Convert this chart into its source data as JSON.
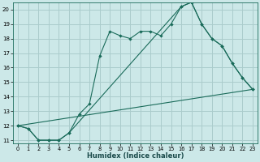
{
  "xlabel": "Humidex (Indice chaleur)",
  "bg_color": "#cce8e8",
  "grid_color": "#aacccc",
  "line_color": "#1a6b5a",
  "xlim": [
    -0.5,
    23.5
  ],
  "ylim": [
    10.8,
    20.5
  ],
  "xticks": [
    0,
    1,
    2,
    3,
    4,
    5,
    6,
    7,
    8,
    9,
    10,
    11,
    12,
    13,
    14,
    15,
    16,
    17,
    18,
    19,
    20,
    21,
    22,
    23
  ],
  "yticks": [
    11,
    12,
    13,
    14,
    15,
    16,
    17,
    18,
    19,
    20
  ],
  "line1_x": [
    0,
    1,
    2,
    3,
    4,
    5,
    6,
    7,
    8,
    9,
    10,
    11,
    12,
    13,
    14,
    15,
    16,
    17,
    18,
    19,
    20,
    21,
    22,
    23
  ],
  "line1_y": [
    12.0,
    11.8,
    11.0,
    11.0,
    11.0,
    11.5,
    12.8,
    13.5,
    16.8,
    18.5,
    18.2,
    18.0,
    18.5,
    18.5,
    18.2,
    19.0,
    20.2,
    20.5,
    19.0,
    18.0,
    17.5,
    16.3,
    15.3,
    14.5
  ],
  "line2_x": [
    0,
    1,
    2,
    3,
    4,
    5,
    16,
    17,
    18,
    19,
    20,
    21,
    22,
    23
  ],
  "line2_y": [
    12.0,
    11.8,
    11.0,
    11.0,
    11.0,
    11.5,
    20.2,
    20.5,
    19.0,
    18.0,
    17.5,
    16.3,
    15.3,
    14.5
  ],
  "line3_x": [
    0,
    23
  ],
  "line3_y": [
    12.0,
    14.5
  ]
}
